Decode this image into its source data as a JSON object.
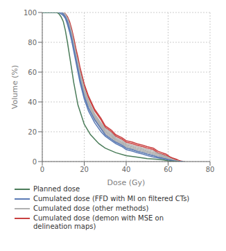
{
  "chart_data": {
    "type": "line",
    "title": "",
    "xlabel": "Dose (Gy)",
    "ylabel": "Volume (%)",
    "xlim": [
      0,
      80
    ],
    "ylim": [
      0,
      100
    ],
    "xticks": [
      0,
      20,
      40,
      60,
      80
    ],
    "yticks": [
      0,
      20,
      40,
      60,
      80,
      100
    ],
    "grid": true,
    "series": [
      {
        "name": "Planned dose",
        "color": "#4a7c59",
        "x": [
          0,
          2,
          4,
          6,
          7,
          8,
          9,
          10,
          11,
          12,
          13,
          14,
          15,
          17,
          20,
          23,
          27,
          30,
          35,
          40,
          45,
          50,
          55,
          58,
          60,
          61,
          62,
          63,
          64,
          65
        ],
        "values": [
          100,
          100,
          100,
          100,
          100,
          99,
          97,
          94,
          88,
          80,
          71,
          62,
          53,
          38,
          25,
          18,
          12,
          9,
          6,
          4,
          3,
          2,
          1.5,
          1,
          0.5,
          0.3,
          0.2,
          0.1,
          0.05,
          0
        ]
      },
      {
        "name": "Cumulated dose (FFD with MI on filtered CTs)",
        "color": "#5a7ab5",
        "x": [
          0,
          2,
          4,
          6,
          7,
          8,
          9,
          10,
          11,
          12,
          13,
          14,
          15,
          16,
          17,
          18,
          20,
          22,
          25,
          28,
          30,
          33,
          35,
          38,
          40,
          43,
          45,
          48,
          50,
          53,
          55,
          57,
          58,
          59,
          60,
          61,
          62,
          63,
          64,
          65,
          66,
          67
        ],
        "values": [
          100,
          100,
          100,
          100,
          100,
          100,
          99,
          98,
          96,
          92,
          87,
          81,
          74,
          67,
          60,
          53,
          42,
          34,
          26,
          20,
          17,
          14,
          12,
          10,
          8,
          7,
          6,
          5,
          4,
          3,
          2.5,
          2,
          1.8,
          1.5,
          1.2,
          0.8,
          0.5,
          0.3,
          0.1,
          0.05,
          0.02,
          0
        ]
      },
      {
        "name": "Cumulated dose (FFD with MI on filtered CTs)",
        "color": "#5a7ab5",
        "x": [
          0,
          2,
          4,
          6,
          7,
          8,
          9,
          10,
          11,
          12,
          13,
          14,
          15,
          16,
          17,
          18,
          20,
          22,
          25,
          28,
          30,
          33,
          35,
          38,
          40,
          43,
          45,
          48,
          50,
          53,
          55,
          57,
          58,
          59,
          60,
          61,
          62,
          63,
          64,
          65,
          66,
          67
        ],
        "values": [
          100,
          100,
          100,
          100,
          100,
          100,
          100,
          99,
          97,
          94,
          89,
          83,
          76,
          69,
          62,
          55,
          44,
          36,
          28,
          22,
          18,
          15,
          13,
          11,
          9,
          8,
          7,
          6,
          5,
          4,
          3,
          2.5,
          2,
          1.7,
          1.3,
          1,
          0.7,
          0.4,
          0.2,
          0.1,
          0.03,
          0
        ]
      },
      {
        "name": "Cumulated dose (other methods)",
        "color": "#b0b0b0",
        "x": [
          0,
          2,
          4,
          6,
          7,
          8,
          9,
          10,
          11,
          12,
          13,
          14,
          15,
          16,
          17,
          18,
          20,
          22,
          25,
          28,
          30,
          33,
          35,
          38,
          40,
          43,
          45,
          48,
          50,
          53,
          55,
          57,
          58,
          59,
          60,
          61,
          62,
          63,
          64,
          65,
          66,
          67,
          68
        ],
        "values": [
          100,
          100,
          100,
          100,
          100,
          100,
          100,
          99,
          97,
          94,
          90,
          84,
          78,
          71,
          65,
          58,
          47,
          39,
          30,
          24,
          20,
          17,
          14,
          12,
          10,
          9,
          8,
          7,
          6,
          5,
          4,
          3,
          2.5,
          2,
          1.5,
          1.2,
          0.9,
          0.6,
          0.4,
          0.2,
          0.1,
          0.05,
          0
        ]
      },
      {
        "name": "Cumulated dose (other methods)",
        "color": "#b0b0b0",
        "x": [
          0,
          2,
          4,
          6,
          7,
          8,
          9,
          10,
          11,
          12,
          13,
          14,
          15,
          16,
          17,
          18,
          20,
          22,
          25,
          28,
          30,
          33,
          35,
          38,
          40,
          43,
          45,
          48,
          50,
          53,
          55,
          57,
          58,
          59,
          60,
          61,
          62,
          63,
          64,
          65,
          66,
          67,
          68
        ],
        "values": [
          100,
          100,
          100,
          100,
          100,
          100,
          100,
          99,
          98,
          95,
          91,
          86,
          79,
          72,
          66,
          59,
          48,
          40,
          31,
          25,
          21,
          18,
          15,
          13,
          11,
          10,
          9,
          8,
          7,
          6,
          5,
          4,
          3,
          2.5,
          2,
          1.5,
          1,
          0.7,
          0.4,
          0.2,
          0.1,
          0.05,
          0
        ]
      },
      {
        "name": "Cumulated dose (other methods)",
        "color": "#b0b0b0",
        "x": [
          0,
          2,
          4,
          6,
          7,
          8,
          9,
          10,
          11,
          12,
          13,
          14,
          15,
          16,
          17,
          18,
          20,
          22,
          25,
          28,
          30,
          33,
          35,
          38,
          40,
          43,
          45,
          48,
          50,
          53,
          55,
          57,
          58,
          59,
          60,
          61,
          62,
          63,
          64,
          65,
          66,
          67,
          68
        ],
        "values": [
          100,
          100,
          100,
          100,
          100,
          100,
          100,
          100,
          98,
          95,
          91,
          85,
          78,
          71,
          64,
          57,
          46,
          38,
          29,
          23,
          19,
          16,
          14,
          12,
          10,
          9,
          8,
          7,
          6,
          5,
          4,
          3.5,
          3,
          2.5,
          2,
          1.5,
          1,
          0.7,
          0.4,
          0.2,
          0.1,
          0.05,
          0
        ]
      },
      {
        "name": "Cumulated dose (other methods)",
        "color": "#b0b0b0",
        "x": [
          0,
          2,
          4,
          6,
          7,
          8,
          9,
          10,
          11,
          12,
          13,
          14,
          15,
          16,
          17,
          18,
          20,
          22,
          25,
          28,
          30,
          33,
          35,
          38,
          40,
          43,
          45,
          48,
          50,
          53,
          55,
          57,
          58,
          59,
          60,
          61,
          62,
          63,
          64,
          65,
          66,
          67,
          68
        ],
        "values": [
          100,
          100,
          100,
          100,
          100,
          100,
          100,
          99,
          97,
          93,
          89,
          83,
          76,
          69,
          62,
          55,
          44,
          36,
          28,
          22,
          18,
          15,
          13,
          11,
          9,
          8,
          7,
          6,
          5,
          4,
          3,
          2.5,
          2.2,
          1.8,
          1.4,
          1,
          0.7,
          0.5,
          0.3,
          0.15,
          0.07,
          0.03,
          0
        ]
      },
      {
        "name": "Cumulated dose (other methods)",
        "color": "#b0b0b0",
        "x": [
          0,
          2,
          4,
          6,
          7,
          8,
          9,
          10,
          11,
          12,
          13,
          14,
          15,
          16,
          17,
          18,
          20,
          22,
          25,
          28,
          30,
          33,
          35,
          38,
          40,
          43,
          45,
          48,
          50,
          53,
          55,
          57,
          58,
          59,
          60,
          61,
          62,
          63,
          64,
          65,
          66,
          67,
          68
        ],
        "values": [
          100,
          100,
          100,
          100,
          100,
          100,
          100,
          100,
          98,
          96,
          92,
          87,
          80,
          73,
          67,
          60,
          49,
          41,
          32,
          26,
          22,
          19,
          16,
          14,
          12,
          11,
          10,
          9,
          8,
          7,
          5.5,
          4.5,
          4,
          3.5,
          3,
          2,
          1.5,
          1,
          0.5,
          0.2,
          0.1,
          0.05,
          0
        ]
      },
      {
        "name": "Cumulated dose (other methods)",
        "color": "#b0b0b0",
        "x": [
          0,
          2,
          4,
          6,
          7,
          8,
          9,
          10,
          11,
          12,
          13,
          14,
          15,
          16,
          17,
          18,
          20,
          22,
          25,
          28,
          30,
          33,
          35,
          38,
          40,
          43,
          45,
          48,
          50,
          53,
          55,
          57,
          58,
          59,
          60,
          61,
          62,
          63,
          64,
          65,
          66,
          67,
          68
        ],
        "values": [
          100,
          100,
          100,
          100,
          100,
          100,
          100,
          100,
          99,
          96,
          92,
          86,
          79,
          72,
          65,
          58,
          47,
          39,
          30,
          24,
          20,
          17,
          15,
          13,
          11,
          10,
          9,
          8,
          7,
          6,
          5,
          4,
          3.5,
          3,
          2.5,
          2,
          1.5,
          1,
          0.5,
          0.2,
          0.1,
          0.05,
          0
        ]
      },
      {
        "name": "Cumulated dose (demon with MSE on\ndelineation maps)",
        "color": "#c94040",
        "x": [
          0,
          2,
          4,
          6,
          7,
          8,
          9,
          10,
          11,
          12,
          13,
          14,
          15,
          16,
          17,
          18,
          20,
          22,
          25,
          28,
          30,
          33,
          35,
          38,
          40,
          43,
          45,
          48,
          50,
          53,
          55,
          57,
          58,
          59,
          60,
          61,
          62,
          63,
          64,
          65,
          66,
          67,
          68
        ],
        "values": [
          100,
          100,
          100,
          100,
          100,
          100,
          100,
          100,
          99,
          97,
          93,
          88,
          82,
          75,
          68,
          62,
          51,
          43,
          34,
          28,
          23,
          20,
          17,
          15,
          13,
          12,
          11,
          10,
          9,
          8,
          6,
          5,
          4.5,
          4,
          3.5,
          3,
          2,
          1.5,
          1,
          0.5,
          0.2,
          0.05,
          0
        ]
      },
      {
        "name": "Cumulated dose (demon with MSE on\ndelineation maps)",
        "color": "#c94040",
        "x": [
          0,
          2,
          4,
          6,
          7,
          8,
          9,
          10,
          11,
          12,
          13,
          14,
          15,
          16,
          17,
          18,
          20,
          22,
          25,
          28,
          30,
          33,
          35,
          38,
          40,
          43,
          45,
          48,
          50,
          53,
          55,
          57,
          58,
          59,
          60,
          61,
          62,
          63,
          64,
          65,
          66,
          67,
          68
        ],
        "values": [
          100,
          100,
          100,
          100,
          100,
          100,
          100,
          100,
          99,
          97,
          94,
          89,
          83,
          76,
          70,
          63,
          52,
          44,
          35,
          29,
          24,
          21,
          18,
          16,
          14,
          13,
          12,
          11,
          10,
          9,
          7,
          6,
          5.5,
          5,
          4,
          3,
          2.5,
          2,
          1.5,
          0.8,
          0.3,
          0.1,
          0
        ]
      }
    ]
  }
}
